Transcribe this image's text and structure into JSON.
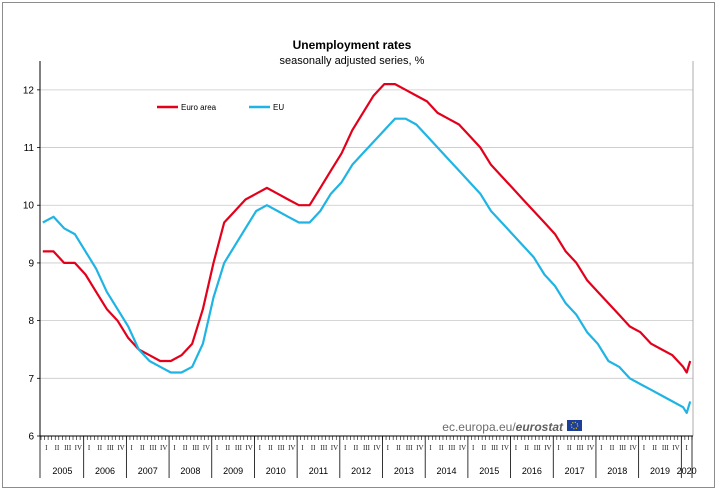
{
  "chart_data": {
    "type": "line",
    "title": "Unemployment rates",
    "subtitle": "seasonally adjusted series, %",
    "xlabel": "",
    "ylabel": "",
    "ylim": [
      6,
      12.5
    ],
    "yticks": [
      6,
      7,
      8,
      9,
      10,
      11,
      12
    ],
    "grid": "horizontal",
    "legend_position": "top-left",
    "source": {
      "prefix": "ec.europa.eu/",
      "brand": "eurostat"
    },
    "years": [
      "2005",
      "2006",
      "2007",
      "2008",
      "2009",
      "2010",
      "2011",
      "2012",
      "2013",
      "2014",
      "2015",
      "2016",
      "2017",
      "2018",
      "2019",
      "2020"
    ],
    "quarter_labels": [
      "I",
      "II",
      "III",
      "IV"
    ],
    "x_start": "2005-01",
    "x_end": "2020-03",
    "series": [
      {
        "name": "Euro area",
        "color": "#e3001b",
        "points": [
          [
            "2005-01",
            9.2
          ],
          [
            "2005-04",
            9.2
          ],
          [
            "2005-07",
            9.0
          ],
          [
            "2005-10",
            9.0
          ],
          [
            "2006-01",
            8.8
          ],
          [
            "2006-04",
            8.5
          ],
          [
            "2006-07",
            8.2
          ],
          [
            "2006-10",
            8.0
          ],
          [
            "2007-01",
            7.7
          ],
          [
            "2007-04",
            7.5
          ],
          [
            "2007-07",
            7.4
          ],
          [
            "2007-10",
            7.3
          ],
          [
            "2008-01",
            7.3
          ],
          [
            "2008-04",
            7.4
          ],
          [
            "2008-07",
            7.6
          ],
          [
            "2008-10",
            8.2
          ],
          [
            "2009-01",
            9.0
          ],
          [
            "2009-04",
            9.7
          ],
          [
            "2009-07",
            9.9
          ],
          [
            "2009-10",
            10.1
          ],
          [
            "2010-01",
            10.2
          ],
          [
            "2010-04",
            10.3
          ],
          [
            "2010-07",
            10.2
          ],
          [
            "2010-10",
            10.1
          ],
          [
            "2011-01",
            10.0
          ],
          [
            "2011-04",
            10.0
          ],
          [
            "2011-07",
            10.3
          ],
          [
            "2011-10",
            10.6
          ],
          [
            "2012-01",
            10.9
          ],
          [
            "2012-04",
            11.3
          ],
          [
            "2012-07",
            11.6
          ],
          [
            "2012-10",
            11.9
          ],
          [
            "2013-01",
            12.1
          ],
          [
            "2013-04",
            12.1
          ],
          [
            "2013-07",
            12.0
          ],
          [
            "2013-10",
            11.9
          ],
          [
            "2014-01",
            11.8
          ],
          [
            "2014-04",
            11.6
          ],
          [
            "2014-07",
            11.5
          ],
          [
            "2014-10",
            11.4
          ],
          [
            "2015-01",
            11.2
          ],
          [
            "2015-04",
            11.0
          ],
          [
            "2015-07",
            10.7
          ],
          [
            "2015-10",
            10.5
          ],
          [
            "2016-01",
            10.3
          ],
          [
            "2016-04",
            10.1
          ],
          [
            "2016-07",
            9.9
          ],
          [
            "2016-10",
            9.7
          ],
          [
            "2017-01",
            9.5
          ],
          [
            "2017-04",
            9.2
          ],
          [
            "2017-07",
            9.0
          ],
          [
            "2017-10",
            8.7
          ],
          [
            "2018-01",
            8.5
          ],
          [
            "2018-04",
            8.3
          ],
          [
            "2018-07",
            8.1
          ],
          [
            "2018-10",
            7.9
          ],
          [
            "2019-01",
            7.8
          ],
          [
            "2019-04",
            7.6
          ],
          [
            "2019-07",
            7.5
          ],
          [
            "2019-10",
            7.4
          ],
          [
            "2020-01",
            7.2
          ],
          [
            "2020-02",
            7.1
          ],
          [
            "2020-03",
            7.3
          ]
        ]
      },
      {
        "name": "EU",
        "color": "#1fb4e3",
        "points": [
          [
            "2005-01",
            9.7
          ],
          [
            "2005-04",
            9.8
          ],
          [
            "2005-07",
            9.6
          ],
          [
            "2005-10",
            9.5
          ],
          [
            "2006-01",
            9.2
          ],
          [
            "2006-04",
            8.9
          ],
          [
            "2006-07",
            8.5
          ],
          [
            "2006-10",
            8.2
          ],
          [
            "2007-01",
            7.9
          ],
          [
            "2007-04",
            7.5
          ],
          [
            "2007-07",
            7.3
          ],
          [
            "2007-10",
            7.2
          ],
          [
            "2008-01",
            7.1
          ],
          [
            "2008-04",
            7.1
          ],
          [
            "2008-07",
            7.2
          ],
          [
            "2008-10",
            7.6
          ],
          [
            "2009-01",
            8.4
          ],
          [
            "2009-04",
            9.0
          ],
          [
            "2009-07",
            9.3
          ],
          [
            "2009-10",
            9.6
          ],
          [
            "2010-01",
            9.9
          ],
          [
            "2010-04",
            10.0
          ],
          [
            "2010-07",
            9.9
          ],
          [
            "2010-10",
            9.8
          ],
          [
            "2011-01",
            9.7
          ],
          [
            "2011-04",
            9.7
          ],
          [
            "2011-07",
            9.9
          ],
          [
            "2011-10",
            10.2
          ],
          [
            "2012-01",
            10.4
          ],
          [
            "2012-04",
            10.7
          ],
          [
            "2012-07",
            10.9
          ],
          [
            "2012-10",
            11.1
          ],
          [
            "2013-01",
            11.3
          ],
          [
            "2013-04",
            11.5
          ],
          [
            "2013-07",
            11.5
          ],
          [
            "2013-10",
            11.4
          ],
          [
            "2014-01",
            11.2
          ],
          [
            "2014-04",
            11.0
          ],
          [
            "2014-07",
            10.8
          ],
          [
            "2014-10",
            10.6
          ],
          [
            "2015-01",
            10.4
          ],
          [
            "2015-04",
            10.2
          ],
          [
            "2015-07",
            9.9
          ],
          [
            "2015-10",
            9.7
          ],
          [
            "2016-01",
            9.5
          ],
          [
            "2016-04",
            9.3
          ],
          [
            "2016-07",
            9.1
          ],
          [
            "2016-10",
            8.8
          ],
          [
            "2017-01",
            8.6
          ],
          [
            "2017-04",
            8.3
          ],
          [
            "2017-07",
            8.1
          ],
          [
            "2017-10",
            7.8
          ],
          [
            "2018-01",
            7.6
          ],
          [
            "2018-04",
            7.3
          ],
          [
            "2018-07",
            7.2
          ],
          [
            "2018-10",
            7.0
          ],
          [
            "2019-01",
            6.9
          ],
          [
            "2019-04",
            6.8
          ],
          [
            "2019-07",
            6.7
          ],
          [
            "2019-10",
            6.6
          ],
          [
            "2020-01",
            6.5
          ],
          [
            "2020-02",
            6.4
          ],
          [
            "2020-03",
            6.6
          ]
        ]
      }
    ]
  }
}
